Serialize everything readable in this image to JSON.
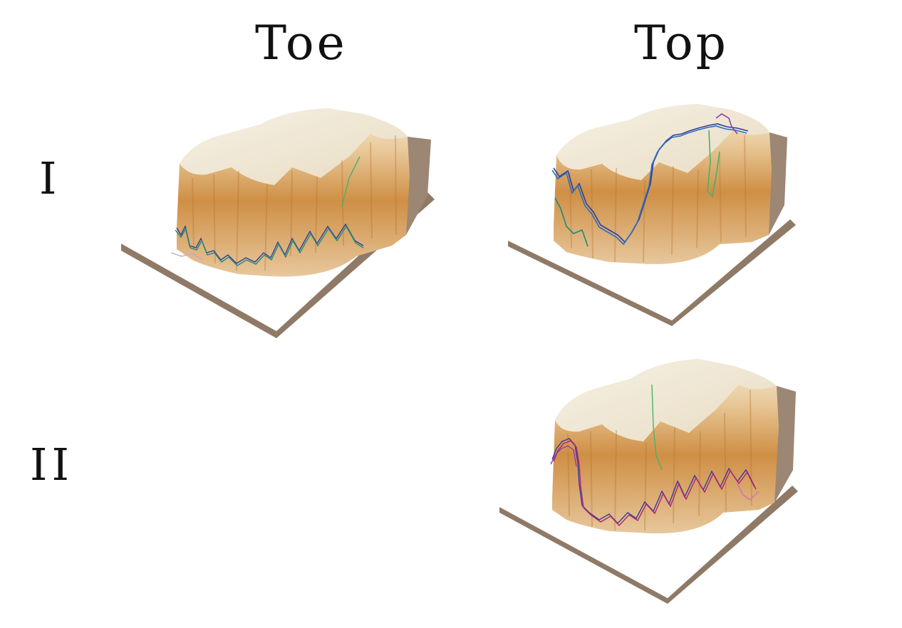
{
  "columns": [
    {
      "id": "toe",
      "label": "Toe"
    },
    {
      "id": "top",
      "label": "Top"
    }
  ],
  "rows": [
    {
      "id": "I",
      "label": "I"
    },
    {
      "id": "II",
      "label": "II"
    }
  ],
  "panels": [
    {
      "id": "toe-I",
      "column": "Toe",
      "row": "I",
      "trace_location": "toe",
      "trace_colors": [
        "#2f3f9a",
        "#1f8a7a",
        "#46b36a",
        "#8a3fb0",
        "#c6a3d9"
      ]
    },
    {
      "id": "top-I",
      "column": "Top",
      "row": "I",
      "trace_location": "top",
      "trace_colors": [
        "#2f3f9a",
        "#2a6ec0",
        "#1f8a7a",
        "#46b36a",
        "#8a3fb0"
      ]
    },
    {
      "id": "top-II",
      "column": "Top",
      "row": "II",
      "trace_location": "toe",
      "trace_colors": [
        "#2f3f9a",
        "#b0207a",
        "#8a3fb0",
        "#46b36a",
        "#d070c0"
      ]
    }
  ],
  "colors": {
    "cliff_light": "#f3ecdb",
    "cliff_mid": "#d9a867",
    "cliff_dark": "#b8732c",
    "side_face": "#9b8774",
    "base_edge": "#7b6655",
    "background": "#ffffff"
  }
}
